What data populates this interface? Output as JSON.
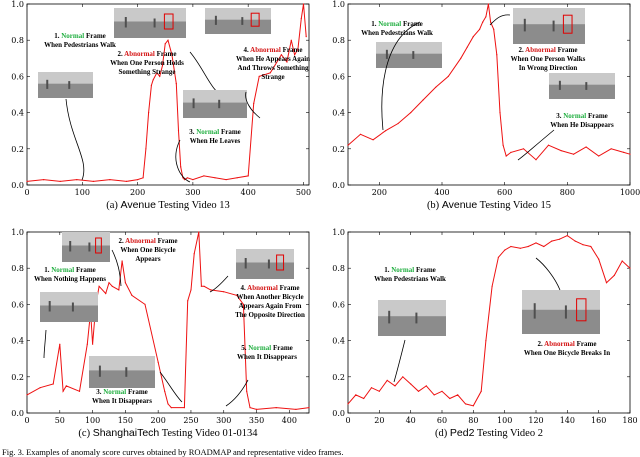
{
  "figure_caption": "Fig. 3.  Examples of anomaly score curves obtained by ROADMAP and representative video frames.",
  "colors": {
    "curve": "#ee1111",
    "normal": "#1fae3f",
    "abnormal": "#d41515"
  },
  "chart_data": [
    {
      "type": "line",
      "caption_prefix": "(a) ",
      "caption_name": "Avenue",
      "caption_suffix": " Testing Video 13",
      "xticks": [
        0,
        100,
        200,
        300,
        400,
        500
      ],
      "yticks": [
        "0.0",
        "0.2",
        "0.4",
        "0.6",
        "0.8",
        "1.0"
      ],
      "xlim": [
        0,
        510
      ],
      "ylim": [
        0,
        1.0
      ],
      "series": [
        {
          "x": [
            0,
            30,
            60,
            90,
            120,
            150,
            180,
            200,
            210,
            215,
            220,
            225,
            228,
            235,
            240,
            245,
            250,
            255,
            262,
            270,
            274,
            278,
            282,
            285,
            290,
            300,
            320,
            340,
            360,
            380,
            400,
            410,
            420,
            440,
            460,
            470,
            478,
            484,
            490,
            496,
            500,
            505
          ],
          "y": [
            0.02,
            0.03,
            0.02,
            0.03,
            0.02,
            0.03,
            0.02,
            0.03,
            0.04,
            0.2,
            0.4,
            0.55,
            0.58,
            0.62,
            0.6,
            0.66,
            0.78,
            0.8,
            0.72,
            0.56,
            0.3,
            0.1,
            0.04,
            0.03,
            0.04,
            0.03,
            0.05,
            0.04,
            0.03,
            0.04,
            0.05,
            0.45,
            0.6,
            0.62,
            0.72,
            0.68,
            0.8,
            0.72,
            0.75,
            0.92,
            1.0,
            0.82
          ]
        }
      ],
      "annotations": [
        {
          "num": "1.",
          "status": "Normal",
          "word": "Frame",
          "rest": [
            "When Pedestrians Walk"
          ]
        },
        {
          "num": "2.",
          "status": "Abnormal",
          "word": "Frame",
          "rest": [
            "When One Person Holds",
            "Something Strange"
          ]
        },
        {
          "num": "3.",
          "status": "Normal",
          "word": "Frame",
          "rest": [
            "When He Leaves"
          ]
        },
        {
          "num": "4.",
          "status": "Abnormal",
          "word": "Frame",
          "rest": [
            "When He Appears Again",
            "And Throws Something",
            "Strange"
          ]
        }
      ]
    },
    {
      "type": "line",
      "caption_prefix": "(b) ",
      "caption_name": "Avenue",
      "caption_suffix": " Testing Video 15",
      "xticks": [
        200,
        400,
        600,
        800,
        1000
      ],
      "yticks": [
        "0.0",
        "0.2",
        "0.4",
        "0.6",
        "0.8",
        "1.0"
      ],
      "xlim": [
        100,
        1000
      ],
      "ylim": [
        0,
        1.0
      ],
      "series": [
        {
          "x": [
            100,
            140,
            180,
            220,
            260,
            300,
            340,
            380,
            420,
            460,
            480,
            500,
            520,
            530,
            540,
            548,
            555,
            565,
            575,
            585,
            595,
            605,
            620,
            660,
            700,
            740,
            780,
            820,
            860,
            900,
            940,
            980,
            1000
          ],
          "y": [
            0.22,
            0.28,
            0.25,
            0.3,
            0.34,
            0.4,
            0.47,
            0.54,
            0.6,
            0.7,
            0.76,
            0.82,
            0.86,
            0.9,
            0.93,
            1.0,
            0.9,
            0.86,
            0.72,
            0.4,
            0.22,
            0.16,
            0.18,
            0.2,
            0.14,
            0.22,
            0.19,
            0.17,
            0.21,
            0.16,
            0.2,
            0.18,
            0.17
          ]
        }
      ],
      "annotations": [
        {
          "num": "1.",
          "status": "Normal",
          "word": "Frame",
          "rest": [
            "When Pedestrians Walk"
          ]
        },
        {
          "num": "2.",
          "status": "Abnormal",
          "word": "Frame",
          "rest": [
            "When One Person Walks",
            "In Wrong Direction"
          ]
        },
        {
          "num": "3.",
          "status": "Normal",
          "word": "Frame",
          "rest": [
            "When He Disappears"
          ]
        }
      ]
    },
    {
      "type": "line",
      "caption_prefix": "(c) ",
      "caption_name": "ShanghaiTech",
      "caption_suffix": " Testing Video 01-0134",
      "xticks": [
        0,
        50,
        100,
        150,
        200,
        250,
        300,
        350,
        400
      ],
      "yticks": [
        "0.0",
        "0.2",
        "0.4",
        "0.6",
        "0.8",
        "1.0"
      ],
      "xlim": [
        0,
        430
      ],
      "ylim": [
        0,
        1.0
      ],
      "series": [
        {
          "x": [
            0,
            20,
            40,
            50,
            55,
            60,
            80,
            92,
            97,
            100,
            105,
            110,
            120,
            125,
            130,
            140,
            145,
            150,
            160,
            180,
            200,
            210,
            215,
            220,
            240,
            245,
            250,
            255,
            262,
            266,
            270,
            280,
            300,
            320,
            330,
            335,
            340,
            350,
            380,
            410,
            430
          ],
          "y": [
            0.1,
            0.14,
            0.16,
            0.38,
            0.12,
            0.15,
            0.12,
            0.38,
            0.56,
            0.38,
            0.6,
            0.7,
            0.66,
            0.72,
            0.7,
            0.68,
            0.84,
            0.72,
            0.65,
            0.6,
            0.28,
            0.12,
            0.05,
            0.03,
            0.03,
            0.62,
            0.68,
            0.88,
            1.0,
            0.7,
            0.7,
            0.68,
            0.67,
            0.65,
            0.6,
            0.12,
            0.03,
            0.02,
            0.03,
            0.02,
            0.03
          ]
        }
      ],
      "annotations": [
        {
          "num": "1.",
          "status": "Normal",
          "word": "Frame",
          "rest": [
            "When Nothing Happens"
          ]
        },
        {
          "num": "2.",
          "status": "Abnormal",
          "word": "Frame",
          "rest": [
            "When One Bicycle",
            "Appears"
          ]
        },
        {
          "num": "3.",
          "status": "Normal",
          "word": "Frame",
          "rest": [
            "When It Disappears"
          ]
        },
        {
          "num": "4.",
          "status": "Abnormal",
          "word": "Frame",
          "rest": [
            "When Another Bicycle",
            "Appears Again From",
            "The Opposite Direction"
          ]
        },
        {
          "num": "5.",
          "status": "Normal",
          "word": "Frame",
          "rest": [
            "When It Disappears"
          ]
        }
      ]
    },
    {
      "type": "line",
      "caption_prefix": "(d) ",
      "caption_name": "Ped2",
      "caption_suffix": " Testing Video 2",
      "xticks": [
        0,
        20,
        40,
        60,
        80,
        100,
        120,
        140,
        160,
        180
      ],
      "yticks": [
        "0.0",
        "0.2",
        "0.4",
        "0.6",
        "0.8",
        "1.0"
      ],
      "xlim": [
        0,
        180
      ],
      "ylim": [
        0,
        1.0
      ],
      "series": [
        {
          "x": [
            0,
            5,
            10,
            15,
            20,
            25,
            30,
            35,
            40,
            45,
            50,
            55,
            60,
            65,
            70,
            75,
            80,
            85,
            88,
            92,
            96,
            100,
            104,
            110,
            115,
            120,
            125,
            130,
            135,
            140,
            145,
            150,
            155,
            160,
            165,
            170,
            175,
            180
          ],
          "y": [
            0.05,
            0.1,
            0.08,
            0.14,
            0.12,
            0.18,
            0.15,
            0.2,
            0.16,
            0.12,
            0.15,
            0.1,
            0.12,
            0.08,
            0.1,
            0.05,
            0.04,
            0.12,
            0.4,
            0.7,
            0.86,
            0.9,
            0.92,
            0.91,
            0.92,
            0.94,
            0.92,
            0.95,
            0.96,
            0.98,
            0.95,
            0.93,
            0.92,
            0.85,
            0.72,
            0.76,
            0.84,
            0.8
          ]
        }
      ],
      "annotations": [
        {
          "num": "1.",
          "status": "Normal",
          "word": "Frame",
          "rest": [
            "When Pedestrians Walk"
          ]
        },
        {
          "num": "2.",
          "status": "Abnormal",
          "word": "Frame",
          "rest": [
            "When One Bicycle Breaks In"
          ]
        }
      ]
    }
  ]
}
